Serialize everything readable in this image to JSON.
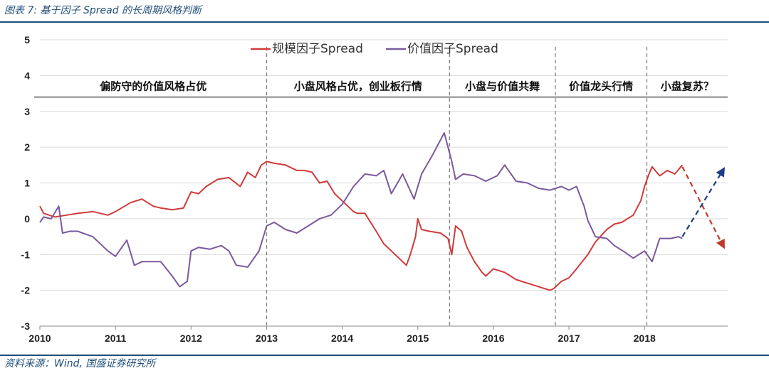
{
  "figure": {
    "title": "图表 7: 基于因子 Spread 的长周期风格判断",
    "source": "资料来源：Wind, 国盛证券研究所"
  },
  "colors": {
    "size": "#d23a3a",
    "value": "#7a5a9e",
    "forecast_down": "#c0392b",
    "forecast_up": "#1f3c88",
    "grid": "#d9d9d9",
    "divider": "#7f7f7f"
  },
  "chart_data": {
    "type": "line",
    "title": "",
    "xlabel": "",
    "ylabel": "",
    "xlim": [
      2010,
      2019.1
    ],
    "ylim": [
      -3,
      5
    ],
    "yticks": [
      -3,
      -2,
      -1,
      0,
      1,
      2,
      3,
      4,
      5
    ],
    "xticks": [
      2010,
      2011,
      2012,
      2013,
      2014,
      2015,
      2016,
      2017,
      2018
    ],
    "grid": "horizontal",
    "legend": {
      "position": "top-center",
      "entries": [
        "规模因子Spread",
        "价值因子Spread"
      ]
    },
    "series": [
      {
        "name": "规模因子Spread",
        "x": [
          2010.0,
          2010.05,
          2010.2,
          2010.35,
          2010.5,
          2010.7,
          2010.9,
          2011.0,
          2011.2,
          2011.35,
          2011.5,
          2011.6,
          2011.75,
          2011.9,
          2012.0,
          2012.1,
          2012.2,
          2012.35,
          2012.5,
          2012.65,
          2012.75,
          2012.85,
          2012.93,
          2013.0,
          2013.1,
          2013.25,
          2013.4,
          2013.5,
          2013.6,
          2013.7,
          2013.8,
          2013.9,
          2014.0,
          2014.15,
          2014.2,
          2014.3,
          2014.45,
          2014.55,
          2014.65,
          2014.75,
          2014.85,
          2014.9,
          2014.97,
          2015.0,
          2015.05,
          2015.15,
          2015.3,
          2015.4,
          2015.45,
          2015.5,
          2015.58,
          2015.65,
          2015.75,
          2015.85,
          2015.9,
          2016.0,
          2016.15,
          2016.3,
          2016.45,
          2016.6,
          2016.75,
          2016.8,
          2016.9,
          2017.0,
          2017.1,
          2017.25,
          2017.35,
          2017.5,
          2017.6,
          2017.7,
          2017.85,
          2017.95,
          2018.0,
          2018.05,
          2018.1,
          2018.2,
          2018.3,
          2018.4,
          2018.5
        ],
        "y": [
          0.35,
          0.15,
          0.05,
          0.1,
          0.15,
          0.2,
          0.1,
          0.2,
          0.45,
          0.55,
          0.35,
          0.3,
          0.25,
          0.3,
          0.75,
          0.7,
          0.9,
          1.1,
          1.15,
          0.9,
          1.3,
          1.15,
          1.5,
          1.6,
          1.55,
          1.5,
          1.35,
          1.35,
          1.3,
          1.0,
          1.05,
          0.7,
          0.5,
          0.2,
          0.15,
          0.15,
          -0.35,
          -0.7,
          -0.9,
          -1.1,
          -1.3,
          -1.0,
          -0.5,
          0.0,
          -0.3,
          -0.35,
          -0.4,
          -0.55,
          -1.0,
          -0.2,
          -0.35,
          -0.8,
          -1.2,
          -1.5,
          -1.6,
          -1.4,
          -1.5,
          -1.7,
          -1.8,
          -1.9,
          -2.0,
          -1.95,
          -1.75,
          -1.65,
          -1.4,
          -1.0,
          -0.65,
          -0.3,
          -0.15,
          -0.1,
          0.1,
          0.5,
          0.9,
          1.2,
          1.45,
          1.2,
          1.35,
          1.25,
          1.5
        ]
      },
      {
        "name": "价值因子Spread",
        "x": [
          2010.0,
          2010.05,
          2010.15,
          2010.25,
          2010.3,
          2010.4,
          2010.5,
          2010.7,
          2010.9,
          2011.0,
          2011.15,
          2011.25,
          2011.35,
          2011.45,
          2011.6,
          2011.75,
          2011.85,
          2011.95,
          2012.0,
          2012.1,
          2012.25,
          2012.4,
          2012.5,
          2012.6,
          2012.75,
          2012.9,
          2013.0,
          2013.1,
          2013.25,
          2013.4,
          2013.55,
          2013.7,
          2013.85,
          2014.0,
          2014.15,
          2014.3,
          2014.45,
          2014.55,
          2014.65,
          2014.8,
          2014.95,
          2015.05,
          2015.2,
          2015.35,
          2015.45,
          2015.5,
          2015.6,
          2015.75,
          2015.9,
          2016.05,
          2016.15,
          2016.3,
          2016.45,
          2016.6,
          2016.75,
          2016.9,
          2017.0,
          2017.1,
          2017.2,
          2017.25,
          2017.35,
          2017.5,
          2017.6,
          2017.75,
          2017.85,
          2018.0,
          2018.1,
          2018.2,
          2018.35,
          2018.45,
          2018.5
        ],
        "y": [
          -0.1,
          0.05,
          0.0,
          0.35,
          -0.4,
          -0.35,
          -0.35,
          -0.5,
          -0.9,
          -1.05,
          -0.6,
          -1.3,
          -1.2,
          -1.2,
          -1.2,
          -1.6,
          -1.9,
          -1.75,
          -0.9,
          -0.8,
          -0.85,
          -0.75,
          -0.9,
          -1.3,
          -1.35,
          -0.9,
          -0.2,
          -0.1,
          -0.3,
          -0.4,
          -0.2,
          0.0,
          0.1,
          0.4,
          0.9,
          1.25,
          1.2,
          1.35,
          0.7,
          1.25,
          0.55,
          1.25,
          1.8,
          2.4,
          1.6,
          1.1,
          1.25,
          1.2,
          1.05,
          1.2,
          1.5,
          1.05,
          1.0,
          0.85,
          0.8,
          0.9,
          0.8,
          0.9,
          0.35,
          -0.05,
          -0.5,
          -0.55,
          -0.75,
          -0.95,
          -1.1,
          -0.9,
          -1.2,
          -0.55,
          -0.55,
          -0.5,
          -0.55
        ]
      }
    ],
    "forecast_arrows": [
      {
        "from": [
          2018.5,
          1.45
        ],
        "to": [
          2019.05,
          -0.8
        ]
      },
      {
        "from": [
          2018.5,
          -0.5
        ],
        "to": [
          2019.05,
          1.4
        ]
      }
    ],
    "regimes": [
      {
        "label": "偏防守的价值风格占优",
        "from": 2010,
        "to": 2013
      },
      {
        "label": "小盘风格占优，创业板行情",
        "from": 2013,
        "to": 2015.42
      },
      {
        "label": "小盘与价值共舞",
        "from": 2015.42,
        "to": 2016.82
      },
      {
        "label": "价值龙头行情",
        "from": 2016.82,
        "to": 2018.03
      },
      {
        "label": "小盘复苏？",
        "from": 2018.03,
        "to": 2019.1
      }
    ],
    "regime_band": [
      3.4,
      4.0
    ]
  }
}
